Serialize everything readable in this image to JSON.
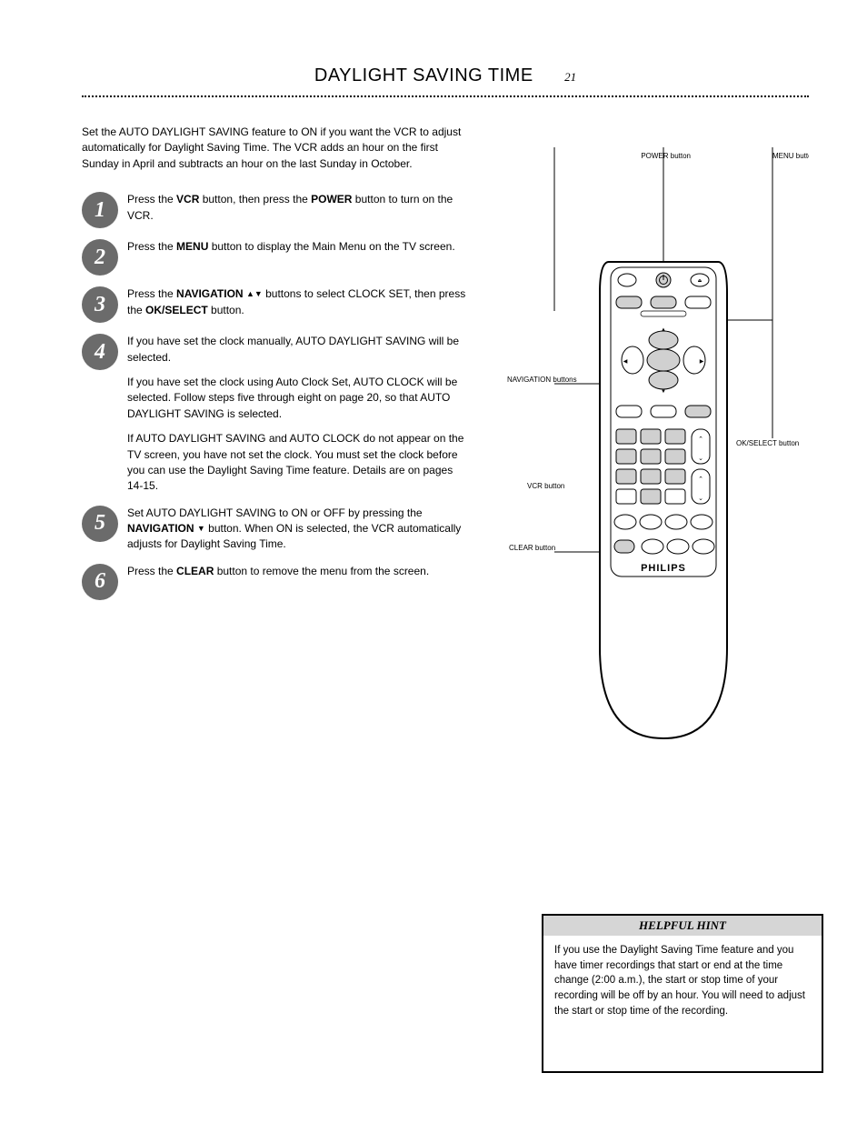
{
  "header": {
    "title": "DAYLIGHT SAVING TIME",
    "page": "21"
  },
  "intro": "Set the AUTO DAYLIGHT SAVING feature to ON if you want the VCR to adjust automatically for Daylight Saving Time. The VCR adds an hour on the first Sunday in April and subtracts an hour on the last Sunday in October.",
  "steps": [
    {
      "n": "1",
      "html": "Press the <b>VCR</b> button, then press the <b>POWER</b> button to turn on the VCR."
    },
    {
      "n": "2",
      "html": "Press the <b>MENU</b> button to display the Main Menu on the TV screen."
    },
    {
      "n": "3",
      "html": "Press the <b>NAVIGATION</b> <span class='tri'>▲▼</span> buttons to select CLOCK SET, then press the <b>OK/SELECT</b> button."
    },
    {
      "n": "4",
      "html": "<p>If you have set the clock manually, AUTO DAYLIGHT SAVING will be selected.</p><p>If you have set the clock using Auto Clock Set, AUTO CLOCK will be selected. Follow steps five through eight on page 20, so that AUTO DAYLIGHT SAVING is selected.</p><p>If AUTO DAYLIGHT SAVING and AUTO CLOCK do not appear on the TV screen, you have not set the clock. You must set the clock before you can use the Daylight Saving Time feature. Details are on pages 14-15.</p>"
    },
    {
      "n": "5",
      "html": "Set AUTO DAYLIGHT SAVING to ON or OFF by pressing the <b>NAVIGATION</b> <span class='tri'>▼</span> button. When ON is selected, the VCR automatically adjusts for Daylight Saving Time."
    },
    {
      "n": "6",
      "html": "Press the <b>CLEAR</b> button to remove the menu from the screen."
    }
  ],
  "buttons": {
    "vcr": "VCR button",
    "power": "POWER button",
    "menu": "MENU button",
    "nav": "NAVIGATION buttons",
    "ok": "OK/SELECT button",
    "clear": "CLEAR button"
  },
  "helpful": {
    "title": "HELPFUL HINT",
    "body": "If you use the Daylight Saving Time feature and you have timer recordings that start or end at the time change (2:00 a.m.), the start or stop time of your recording will be off by an hour. You will need to adjust the start or stop time of the recording."
  },
  "colors": {
    "bg": "#ffffff",
    "text": "#000000",
    "step_bg": "#6b6b6b",
    "helpful_head_bg": "#d6d6d6",
    "remote_shade": "#d0d0d0",
    "remote_stroke": "#000000"
  }
}
